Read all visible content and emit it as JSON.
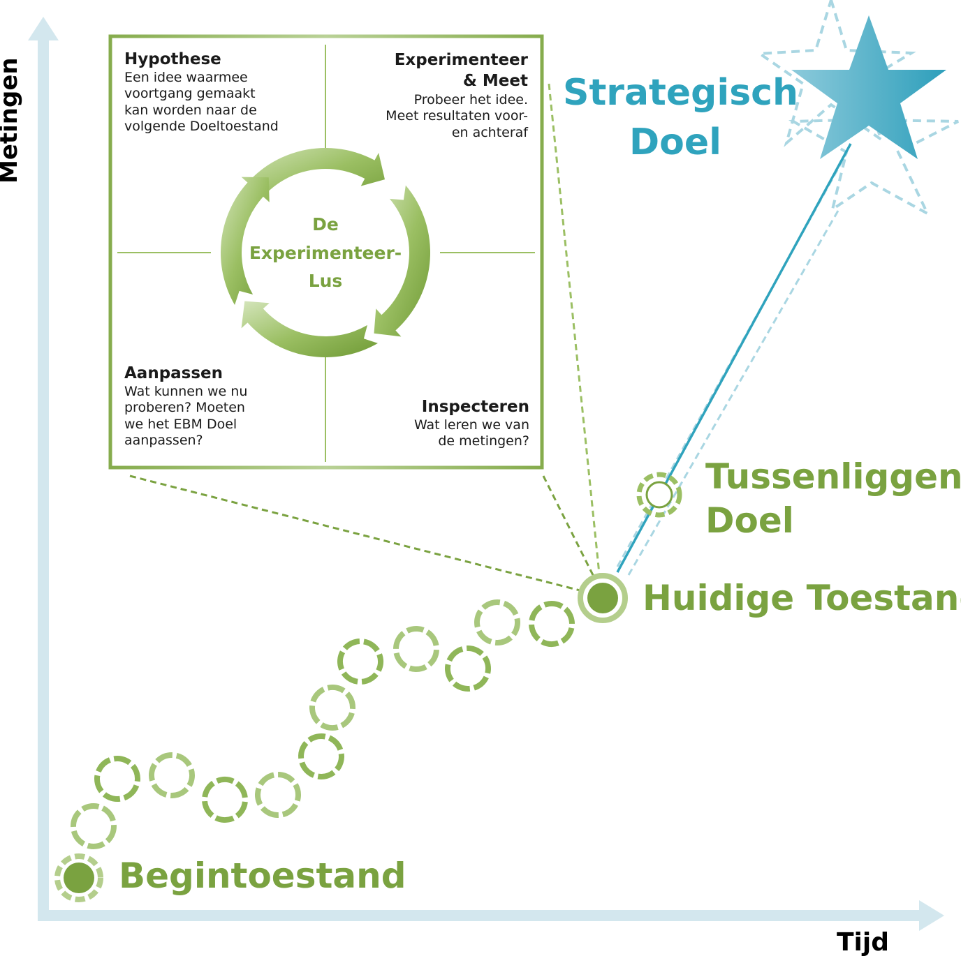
{
  "axes": {
    "y_label": "Metingen",
    "x_label": "Tijd"
  },
  "states": {
    "start": "Begintoestand",
    "current": "Huidige Toestand",
    "intermediate": "Tussenliggend\nDoel",
    "strategic": "Strategisch\nDoel"
  },
  "loop_box": {
    "center_label": "De\nExperimenteer-\nLus",
    "quadrants": {
      "hypothesis": {
        "title": "Hypothese",
        "body": "Een idee waarmee\nvoortgang gemaakt\nkan worden naar de\nvolgende Doeltoestand"
      },
      "experiment": {
        "title": "Experimenteer\n& Meet",
        "body": "Probeer het idee.\nMeet resultaten voor-\nen achteraf"
      },
      "adapt": {
        "title": "Aanpassen",
        "body": "Wat kunnen we nu\nproberen? Moeten\nwe het EBM Doel\naanpassen?"
      },
      "inspect": {
        "title": "Inspecteren",
        "body": "Wat leren we van\nde metingen?"
      }
    }
  },
  "colors": {
    "green": "#7aa240",
    "light_green": "#b4ce8c",
    "teal": "#2fa3bd",
    "light_teal": "#a9d6e2",
    "axis": "#d3e7ee"
  }
}
